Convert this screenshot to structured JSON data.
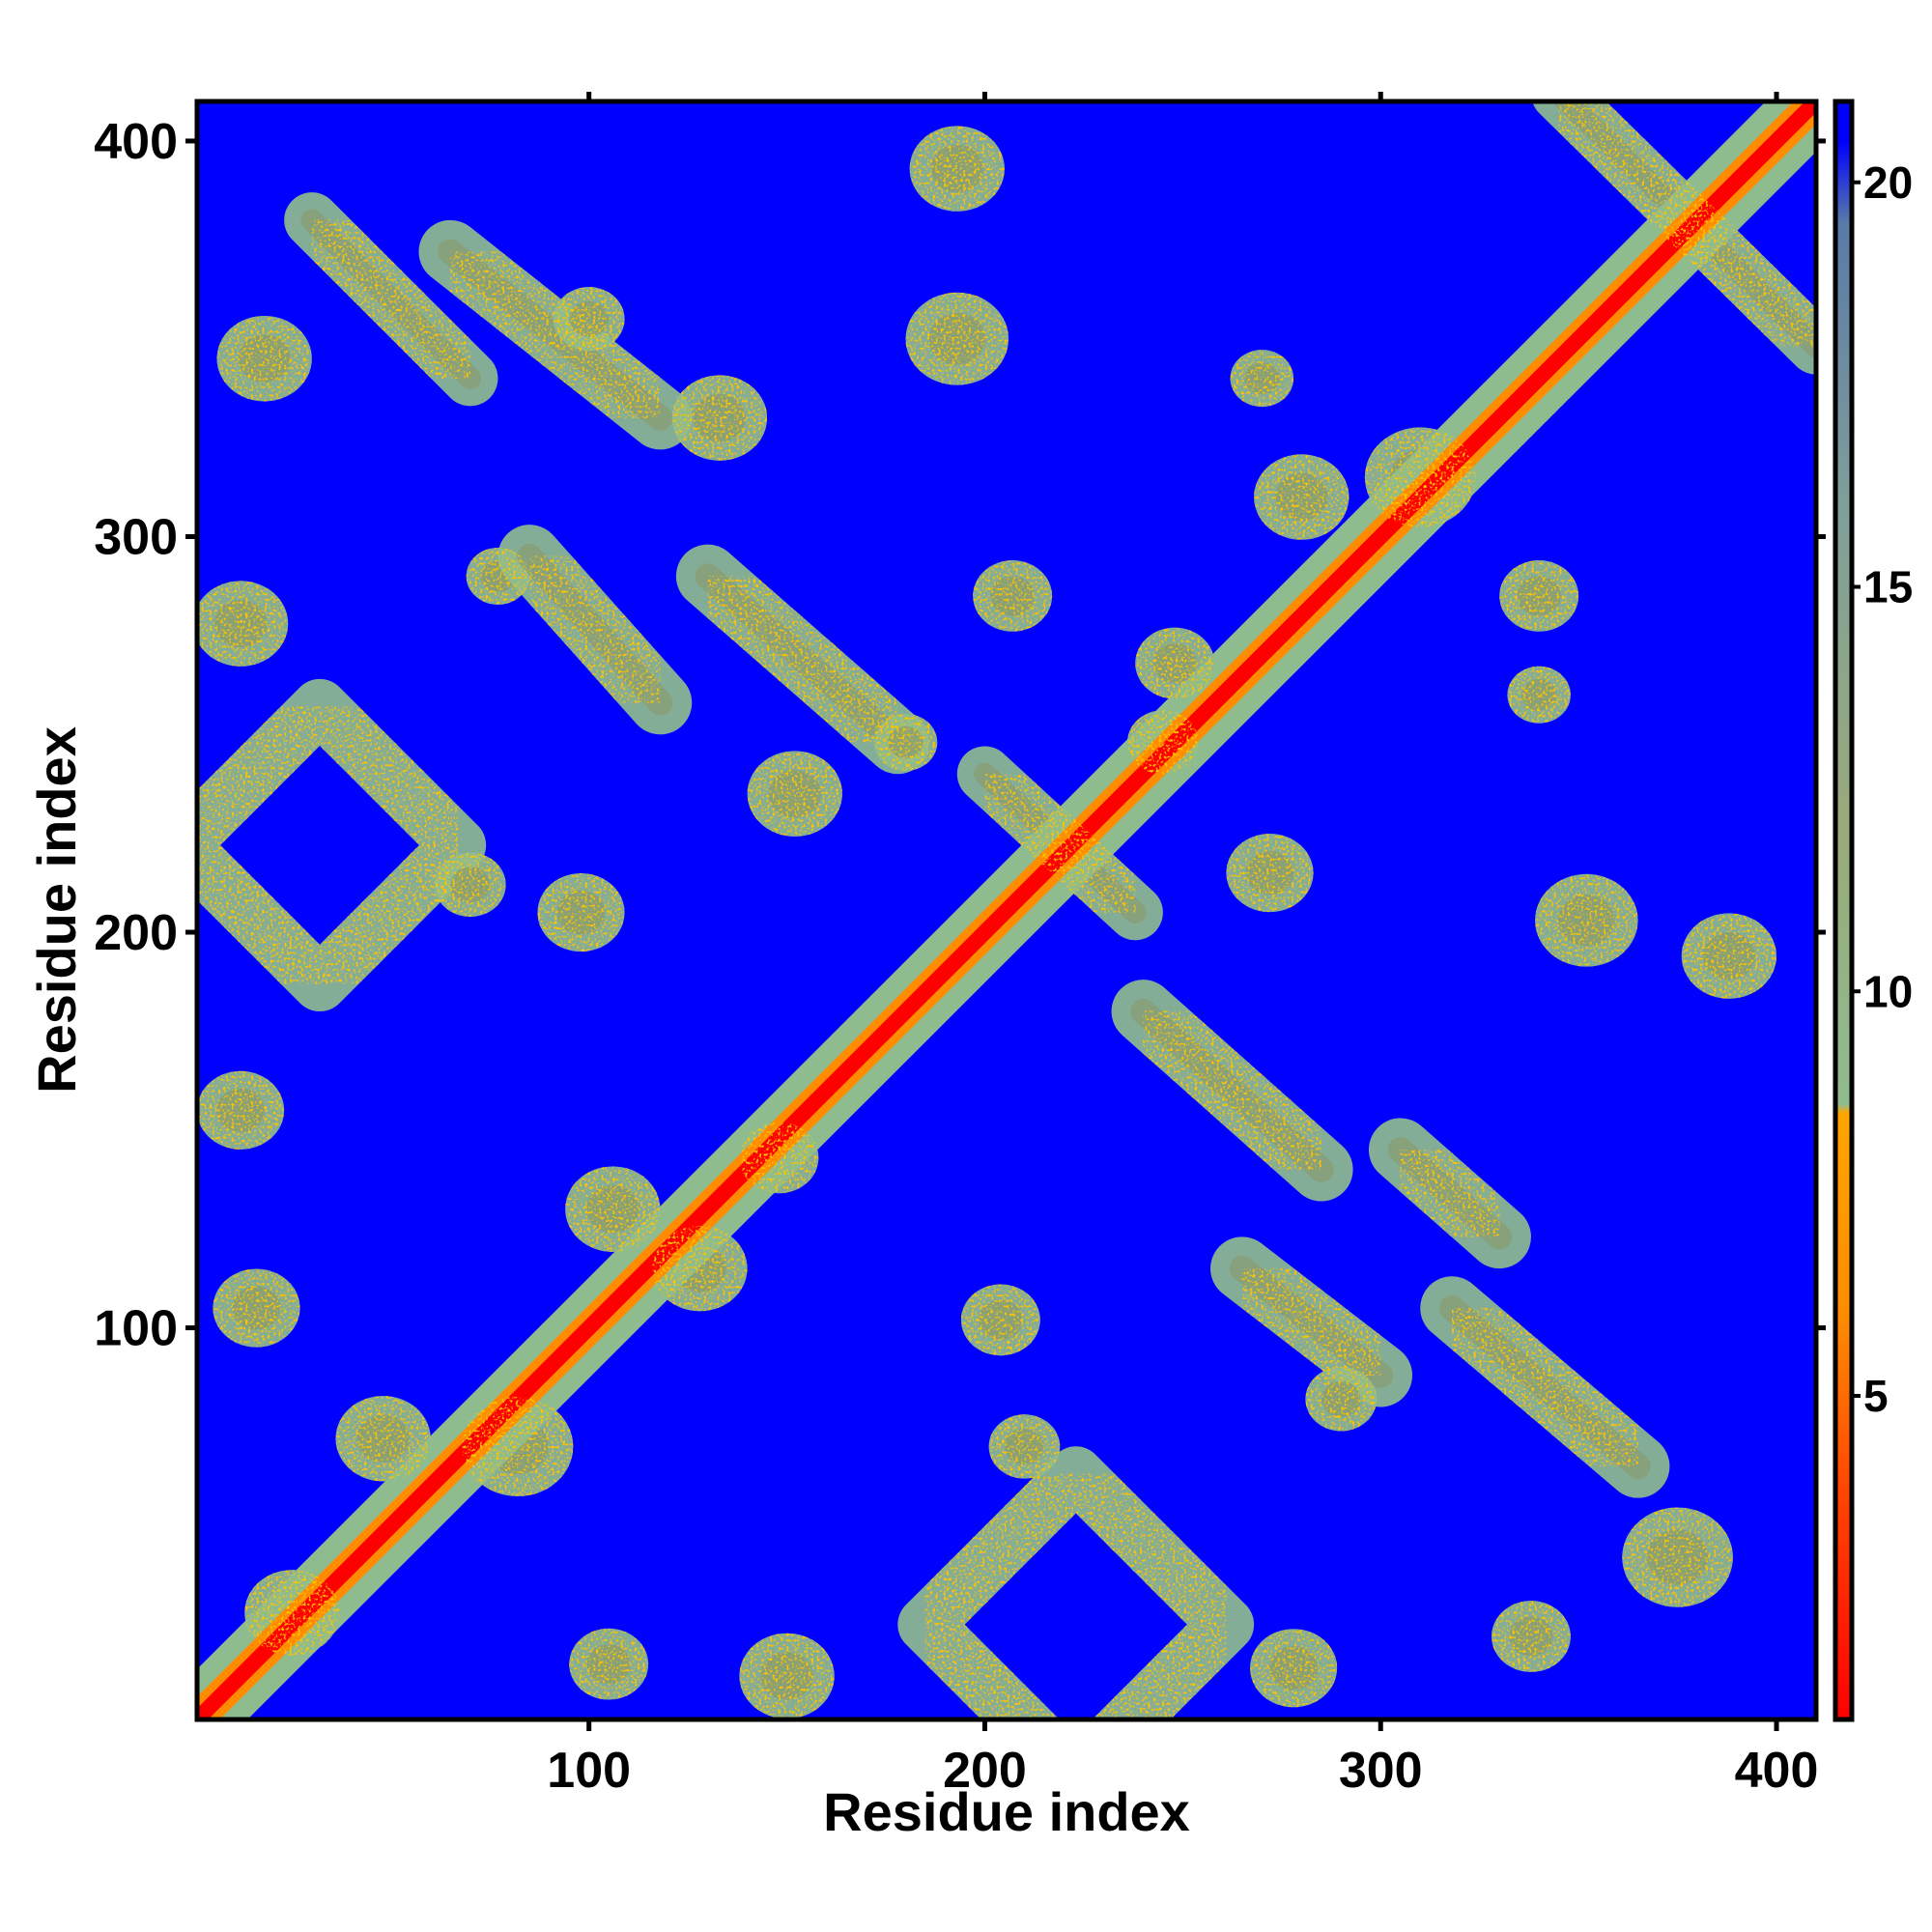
{
  "chart_data": {
    "type": "heatmap",
    "title": "",
    "xlabel": "Residue index",
    "ylabel": "Residue index",
    "x_range": [
      1,
      410
    ],
    "y_range": [
      1,
      410
    ],
    "x_ticks": [
      100,
      200,
      300,
      400
    ],
    "y_ticks": [
      100,
      200,
      300,
      400
    ],
    "colorbar": {
      "range": [
        1,
        21
      ],
      "ticks": [
        5,
        10,
        15,
        20
      ],
      "stops": [
        {
          "value": 1,
          "color": "#ff0000"
        },
        {
          "value": 4,
          "color": "#ff4a00"
        },
        {
          "value": 6,
          "color": "#ff8c00"
        },
        {
          "value": 8.5,
          "color": "#ffa500"
        },
        {
          "value": 8.6,
          "color": "#8fbc8f"
        },
        {
          "value": 12,
          "color": "#9aaa7a"
        },
        {
          "value": 16,
          "color": "#7f9f9a"
        },
        {
          "value": 19.5,
          "color": "#5a7aa8"
        },
        {
          "value": 20.5,
          "color": "#0000ff"
        },
        {
          "value": 21,
          "color": "#0000ff"
        }
      ]
    },
    "background_color": "#0000ff",
    "diagonal_band": {
      "core_color": "#ff0000",
      "mid_color": "#ff8c00",
      "edge_color": "#8fbc8f",
      "width": 18
    },
    "contact_features": [
      {
        "kind": "antidiag",
        "from": [
          345,
          412
        ],
        "to": [
          410,
          348
        ],
        "width": 14
      },
      {
        "kind": "antidiag",
        "from": [
          30,
          380
        ],
        "to": [
          70,
          340
        ],
        "width": 14
      },
      {
        "kind": "diag",
        "from": [
          65,
          372
        ],
        "to": [
          118,
          330
        ],
        "width": 16
      },
      {
        "kind": "blob",
        "center": [
          18,
          345
        ],
        "r": 12
      },
      {
        "kind": "blob",
        "center": [
          193,
          393
        ],
        "r": 12
      },
      {
        "kind": "blob",
        "center": [
          193,
          350
        ],
        "r": 13
      },
      {
        "kind": "blob",
        "center": [
          133,
          330
        ],
        "r": 12
      },
      {
        "kind": "blob",
        "center": [
          77,
          290
        ],
        "r": 8
      },
      {
        "kind": "diag",
        "from": [
          85,
          295
        ],
        "to": [
          118,
          258
        ],
        "width": 16
      },
      {
        "kind": "diag",
        "from": [
          130,
          290
        ],
        "to": [
          178,
          248
        ],
        "width": 16
      },
      {
        "kind": "blob",
        "center": [
          152,
          235
        ],
        "r": 12
      },
      {
        "kind": "blob",
        "center": [
          207,
          285
        ],
        "r": 10
      },
      {
        "kind": "blob",
        "center": [
          12,
          278
        ],
        "r": 12
      },
      {
        "kind": "diamond",
        "center": [
          32,
          222
        ],
        "r": 35,
        "width": 14
      },
      {
        "kind": "blob",
        "center": [
          70,
          212
        ],
        "r": 9
      },
      {
        "kind": "blob",
        "center": [
          98,
          205
        ],
        "r": 11
      },
      {
        "kind": "blob",
        "center": [
          12,
          155
        ],
        "r": 11
      },
      {
        "kind": "blob",
        "center": [
          16,
          105
        ],
        "r": 11
      },
      {
        "kind": "blob",
        "center": [
          272,
          215
        ],
        "r": 11
      },
      {
        "kind": "blob",
        "center": [
          352,
          203
        ],
        "r": 13
      },
      {
        "kind": "blob",
        "center": [
          388,
          194
        ],
        "r": 12
      },
      {
        "kind": "blob",
        "center": [
          340,
          260
        ],
        "r": 8
      },
      {
        "kind": "blob",
        "center": [
          280,
          310
        ],
        "r": 12
      },
      {
        "kind": "blob",
        "center": [
          340,
          285
        ],
        "r": 10
      },
      {
        "kind": "diag",
        "from": [
          240,
          180
        ],
        "to": [
          285,
          140
        ],
        "width": 16
      },
      {
        "kind": "diag",
        "from": [
          265,
          115
        ],
        "to": [
          300,
          88
        ],
        "width": 16
      },
      {
        "kind": "blob",
        "center": [
          290,
          82
        ],
        "r": 9
      },
      {
        "kind": "diag",
        "from": [
          305,
          145
        ],
        "to": [
          330,
          123
        ],
        "width": 16
      },
      {
        "kind": "diag",
        "from": [
          318,
          105
        ],
        "to": [
          365,
          65
        ],
        "width": 16
      },
      {
        "kind": "blob",
        "center": [
          375,
          42
        ],
        "r": 14
      },
      {
        "kind": "blob",
        "center": [
          338,
          22
        ],
        "r": 10
      },
      {
        "kind": "diamond",
        "center": [
          223,
          25
        ],
        "r": 38,
        "width": 14
      },
      {
        "kind": "blob",
        "center": [
          150,
          12
        ],
        "r": 12
      },
      {
        "kind": "blob",
        "center": [
          278,
          14
        ],
        "r": 11
      },
      {
        "kind": "blob",
        "center": [
          105,
          15
        ],
        "r": 10
      },
      {
        "kind": "blob",
        "center": [
          25,
          28
        ],
        "r": 12
      },
      {
        "kind": "blob",
        "center": [
          204,
          102
        ],
        "r": 10
      },
      {
        "kind": "blob",
        "center": [
          106,
          130
        ],
        "r": 12
      },
      {
        "kind": "blob",
        "center": [
          128,
          115
        ],
        "r": 12
      },
      {
        "kind": "blob",
        "center": [
          48,
          72
        ],
        "r": 12
      },
      {
        "kind": "blob",
        "center": [
          82,
          70
        ],
        "r": 14
      },
      {
        "kind": "blob",
        "center": [
          148,
          143
        ],
        "r": 10
      },
      {
        "kind": "blob",
        "center": [
          210,
          70
        ],
        "r": 9
      },
      {
        "kind": "blob",
        "center": [
          248,
          268
        ],
        "r": 10
      },
      {
        "kind": "blob",
        "center": [
          245,
          248
        ],
        "r": 9
      },
      {
        "kind": "blob",
        "center": [
          100,
          355
        ],
        "r": 9
      },
      {
        "kind": "blob",
        "center": [
          310,
          315
        ],
        "r": 14
      },
      {
        "kind": "diag",
        "from": [
          200,
          240
        ],
        "to": [
          238,
          205
        ],
        "width": 14
      },
      {
        "kind": "blob",
        "center": [
          180,
          248
        ],
        "r": 8
      },
      {
        "kind": "blob",
        "center": [
          270,
          340
        ],
        "r": 8
      }
    ]
  }
}
